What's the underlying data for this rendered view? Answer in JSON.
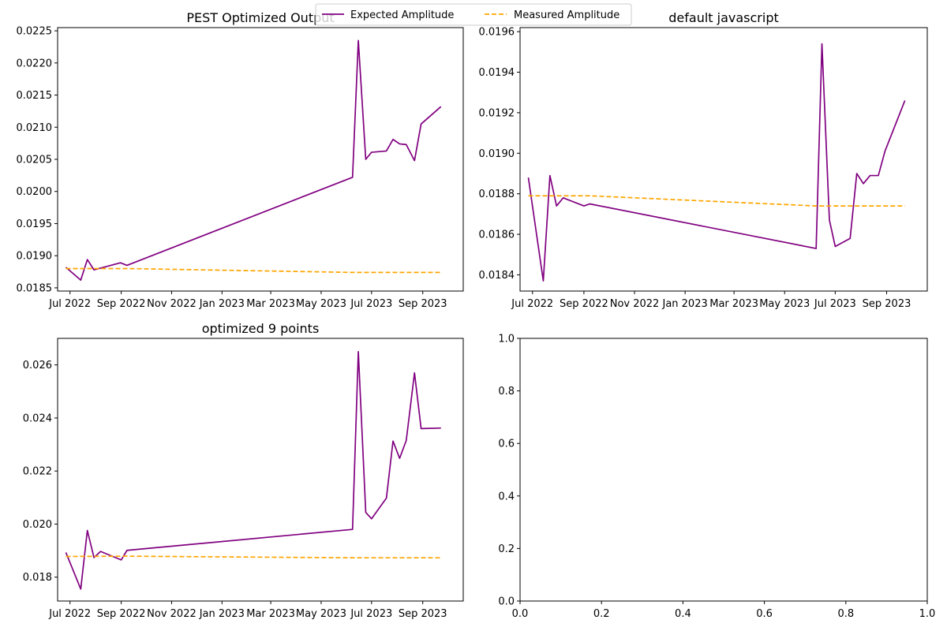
{
  "figure": {
    "legend": {
      "placement": "top-center",
      "entries": [
        {
          "label": "Expected Amplitude",
          "color": "#800080",
          "style": "solid"
        },
        {
          "label": "Measured Amplitude",
          "color": "#ffa500",
          "style": "dashed"
        }
      ]
    }
  },
  "chart_data": [
    {
      "type": "line",
      "title": "PEST Optimized Output",
      "xlabel": "",
      "ylabel": "",
      "x_type": "date",
      "xlim": [
        "2022-06-16",
        "2023-10-20"
      ],
      "ylim": [
        0.01845,
        0.02255
      ],
      "x_ticks": [
        {
          "date": "2022-07-01",
          "label": "Jul 2022"
        },
        {
          "date": "2022-09-01",
          "label": "Sep 2022"
        },
        {
          "date": "2022-11-01",
          "label": "Nov 2022"
        },
        {
          "date": "2023-01-01",
          "label": "Jan 2023"
        },
        {
          "date": "2023-03-01",
          "label": "Mar 2023"
        },
        {
          "date": "2023-05-01",
          "label": "May 2023"
        },
        {
          "date": "2023-07-01",
          "label": "Jul 2023"
        },
        {
          "date": "2023-09-01",
          "label": "Sep 2023"
        }
      ],
      "y_ticks": [
        {
          "value": 0.0185,
          "label": "0.0185"
        },
        {
          "value": 0.019,
          "label": "0.0190"
        },
        {
          "value": 0.0195,
          "label": "0.0195"
        },
        {
          "value": 0.02,
          "label": "0.0200"
        },
        {
          "value": 0.0205,
          "label": "0.0205"
        },
        {
          "value": 0.021,
          "label": "0.0210"
        },
        {
          "value": 0.0215,
          "label": "0.0215"
        },
        {
          "value": 0.022,
          "label": "0.0220"
        },
        {
          "value": 0.0225,
          "label": "0.0225"
        }
      ],
      "series": [
        {
          "name": "Expected Amplitude",
          "color": "#800080",
          "style": "solid",
          "points": [
            [
              "2022-06-26",
              0.01882
            ],
            [
              "2022-07-14",
              0.01862
            ],
            [
              "2022-07-22",
              0.01894
            ],
            [
              "2022-07-30",
              0.01878
            ],
            [
              "2022-08-31",
              0.01889
            ],
            [
              "2022-09-08",
              0.01885
            ],
            [
              "2023-06-08",
              0.02022
            ],
            [
              "2023-06-15",
              0.02235
            ],
            [
              "2023-06-24",
              0.0205
            ],
            [
              "2023-07-01",
              0.02061
            ],
            [
              "2023-07-19",
              0.02063
            ],
            [
              "2023-07-27",
              0.02081
            ],
            [
              "2023-08-04",
              0.02074
            ],
            [
              "2023-08-12",
              0.02073
            ],
            [
              "2023-08-22",
              0.02048
            ],
            [
              "2023-08-30",
              0.02105
            ],
            [
              "2023-09-23",
              0.02132
            ]
          ]
        },
        {
          "name": "Measured Amplitude",
          "color": "#ffa500",
          "style": "dashed",
          "points": [
            [
              "2022-06-26",
              0.0188
            ],
            [
              "2022-09-08",
              0.0188
            ],
            [
              "2023-06-08",
              0.01874
            ],
            [
              "2023-09-23",
              0.01874
            ]
          ]
        }
      ]
    },
    {
      "type": "line",
      "title": "default javascript",
      "xlabel": "",
      "ylabel": "",
      "x_type": "date",
      "xlim": [
        "2022-06-16",
        "2023-10-20"
      ],
      "ylim": [
        0.01832,
        0.01962
      ],
      "x_ticks": [
        {
          "date": "2022-07-01",
          "label": "Jul 2022"
        },
        {
          "date": "2022-09-01",
          "label": "Sep 2022"
        },
        {
          "date": "2022-11-01",
          "label": "Nov 2022"
        },
        {
          "date": "2023-01-01",
          "label": "Jan 2023"
        },
        {
          "date": "2023-03-01",
          "label": "Mar 2023"
        },
        {
          "date": "2023-05-01",
          "label": "May 2023"
        },
        {
          "date": "2023-07-01",
          "label": "Jul 2023"
        },
        {
          "date": "2023-09-01",
          "label": "Sep 2023"
        }
      ],
      "y_ticks": [
        {
          "value": 0.0184,
          "label": "0.0184"
        },
        {
          "value": 0.0186,
          "label": "0.0186"
        },
        {
          "value": 0.0188,
          "label": "0.0188"
        },
        {
          "value": 0.019,
          "label": "0.0190"
        },
        {
          "value": 0.0192,
          "label": "0.0192"
        },
        {
          "value": 0.0194,
          "label": "0.0194"
        },
        {
          "value": 0.0196,
          "label": "0.0196"
        }
      ],
      "series": [
        {
          "name": "Expected Amplitude",
          "color": "#800080",
          "style": "solid",
          "points": [
            [
              "2022-06-26",
              0.01888
            ],
            [
              "2022-07-14",
              0.01837
            ],
            [
              "2022-07-22",
              0.01889
            ],
            [
              "2022-07-30",
              0.01874
            ],
            [
              "2022-08-07",
              0.01878
            ],
            [
              "2022-09-01",
              0.01874
            ],
            [
              "2022-09-08",
              0.01875
            ],
            [
              "2023-06-08",
              0.01853
            ],
            [
              "2023-06-15",
              0.01954
            ],
            [
              "2023-06-24",
              0.01867
            ],
            [
              "2023-07-01",
              0.01854
            ],
            [
              "2023-07-19",
              0.01858
            ],
            [
              "2023-07-27",
              0.0189
            ],
            [
              "2023-08-04",
              0.01885
            ],
            [
              "2023-08-12",
              0.01889
            ],
            [
              "2023-08-22",
              0.01889
            ],
            [
              "2023-08-30",
              0.01901
            ],
            [
              "2023-09-23",
              0.01926
            ]
          ]
        },
        {
          "name": "Measured Amplitude",
          "color": "#ffa500",
          "style": "dashed",
          "points": [
            [
              "2022-06-26",
              0.01879
            ],
            [
              "2022-09-08",
              0.01879
            ],
            [
              "2023-06-08",
              0.01874
            ],
            [
              "2023-09-23",
              0.01874
            ]
          ]
        }
      ]
    },
    {
      "type": "line",
      "title": "optimized 9 points",
      "xlabel": "",
      "ylabel": "",
      "x_type": "date",
      "xlim": [
        "2022-06-16",
        "2023-10-20"
      ],
      "ylim": [
        0.0171,
        0.027
      ],
      "x_ticks": [
        {
          "date": "2022-07-01",
          "label": "Jul 2022"
        },
        {
          "date": "2022-09-01",
          "label": "Sep 2022"
        },
        {
          "date": "2022-11-01",
          "label": "Nov 2022"
        },
        {
          "date": "2023-01-01",
          "label": "Jan 2023"
        },
        {
          "date": "2023-03-01",
          "label": "Mar 2023"
        },
        {
          "date": "2023-05-01",
          "label": "May 2023"
        },
        {
          "date": "2023-07-01",
          "label": "Jul 2023"
        },
        {
          "date": "2023-09-01",
          "label": "Sep 2023"
        }
      ],
      "y_ticks": [
        {
          "value": 0.018,
          "label": "0.018"
        },
        {
          "value": 0.02,
          "label": "0.020"
        },
        {
          "value": 0.022,
          "label": "0.022"
        },
        {
          "value": 0.024,
          "label": "0.024"
        },
        {
          "value": 0.026,
          "label": "0.026"
        }
      ],
      "series": [
        {
          "name": "Expected Amplitude",
          "color": "#800080",
          "style": "solid",
          "points": [
            [
              "2022-06-26",
              0.01893
            ],
            [
              "2022-07-14",
              0.01755
            ],
            [
              "2022-07-22",
              0.01976
            ],
            [
              "2022-07-30",
              0.01874
            ],
            [
              "2022-08-07",
              0.01897
            ],
            [
              "2022-09-01",
              0.01865
            ],
            [
              "2022-09-08",
              0.01901
            ],
            [
              "2023-06-08",
              0.0198
            ],
            [
              "2023-06-15",
              0.0265
            ],
            [
              "2023-06-24",
              0.02044
            ],
            [
              "2023-07-01",
              0.0202
            ],
            [
              "2023-07-19",
              0.02098
            ],
            [
              "2023-07-27",
              0.02313
            ],
            [
              "2023-08-04",
              0.02248
            ],
            [
              "2023-08-12",
              0.02315
            ],
            [
              "2023-08-22",
              0.0257
            ],
            [
              "2023-08-30",
              0.0236
            ],
            [
              "2023-09-23",
              0.02362
            ]
          ]
        },
        {
          "name": "Measured Amplitude",
          "color": "#ffa500",
          "style": "dashed",
          "points": [
            [
              "2022-06-26",
              0.01878
            ],
            [
              "2022-09-08",
              0.01879
            ],
            [
              "2023-06-08",
              0.01873
            ],
            [
              "2023-09-23",
              0.01873
            ]
          ]
        }
      ]
    },
    {
      "type": "line",
      "title": "",
      "xlabel": "",
      "ylabel": "",
      "x_type": "number",
      "xlim": [
        0,
        1
      ],
      "ylim": [
        0,
        1
      ],
      "x_ticks": [
        {
          "value": 0.0,
          "label": "0.0"
        },
        {
          "value": 0.2,
          "label": "0.2"
        },
        {
          "value": 0.4,
          "label": "0.4"
        },
        {
          "value": 0.6,
          "label": "0.6"
        },
        {
          "value": 0.8,
          "label": "0.8"
        },
        {
          "value": 1.0,
          "label": "1.0"
        }
      ],
      "y_ticks": [
        {
          "value": 0.0,
          "label": "0.0"
        },
        {
          "value": 0.2,
          "label": "0.2"
        },
        {
          "value": 0.4,
          "label": "0.4"
        },
        {
          "value": 0.6,
          "label": "0.6"
        },
        {
          "value": 0.8,
          "label": "0.8"
        },
        {
          "value": 1.0,
          "label": "1.0"
        }
      ],
      "series": []
    }
  ]
}
